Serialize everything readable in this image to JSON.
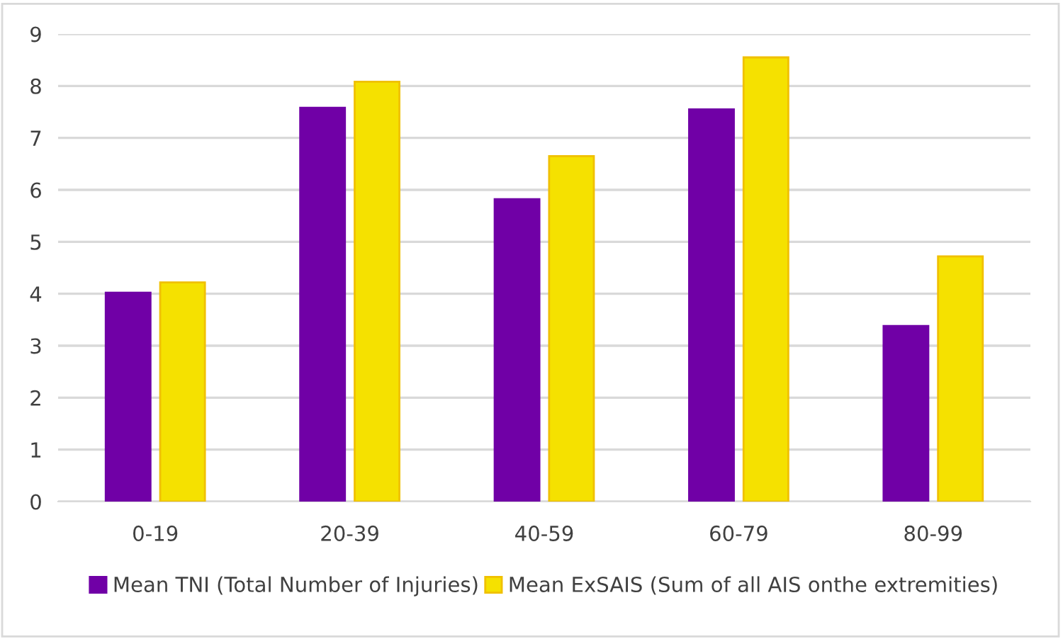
{
  "chart_data": {
    "type": "bar",
    "categories": [
      "0-19",
      "20-39",
      "40-59",
      "60-79",
      "80-99"
    ],
    "series": [
      {
        "name": "Mean TNI (Total Number of Injuries)",
        "color": "#7000a6",
        "values": [
          4.02,
          7.58,
          5.82,
          7.55,
          3.38
        ]
      },
      {
        "name": "Mean ExSAIS (Sum of all AIS onthe extremities)",
        "color": "#f5e100",
        "values": [
          4.22,
          8.08,
          6.65,
          8.55,
          4.72
        ]
      }
    ],
    "ylim": [
      0,
      9
    ],
    "yticks": [
      0,
      1,
      2,
      3,
      4,
      5,
      6,
      7,
      8,
      9
    ],
    "grid": "y",
    "legend": "bottom"
  }
}
